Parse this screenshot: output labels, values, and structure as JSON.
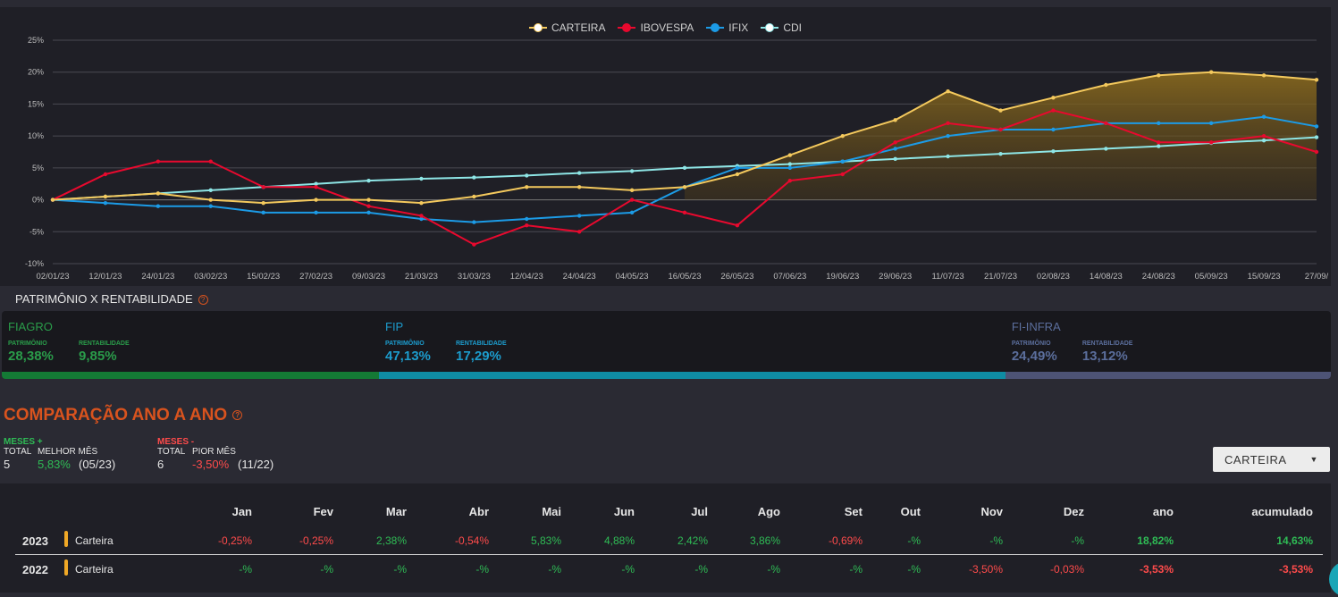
{
  "chart": {
    "legend": [
      {
        "name": "CARTEIRA",
        "color": "#f4c95d",
        "fill": "#ffffff"
      },
      {
        "name": "IBOVESPA",
        "color": "#e8092e",
        "fill": "#e8092e"
      },
      {
        "name": "IFIX",
        "color": "#1c9be6",
        "fill": "#1c9be6"
      },
      {
        "name": "CDI",
        "color": "#8ee6e6",
        "fill": "#ffffff"
      }
    ]
  },
  "chart_data": {
    "type": "line",
    "y_ticks": [
      "25%",
      "20%",
      "15%",
      "10%",
      "5%",
      "0%",
      "-5%",
      "-10%"
    ],
    "ylim": [
      -10,
      25
    ],
    "x_ticks": [
      "02/01/23",
      "12/01/23",
      "24/01/23",
      "03/02/23",
      "15/02/23",
      "27/02/23",
      "09/03/23",
      "21/03/23",
      "31/03/23",
      "12/04/23",
      "24/04/23",
      "04/05/23",
      "16/05/23",
      "26/05/23",
      "07/06/23",
      "19/06/23",
      "29/06/23",
      "11/07/23",
      "21/07/23",
      "02/08/23",
      "14/08/23",
      "24/08/23",
      "05/09/23",
      "15/09/23",
      "27/09/"
    ],
    "series": [
      {
        "name": "CARTEIRA",
        "color": "#f4c95d",
        "values": [
          0,
          0.5,
          1,
          0,
          -0.5,
          0,
          0,
          -0.5,
          0.5,
          2,
          2,
          1.5,
          2,
          4,
          7,
          10,
          12.5,
          17,
          14,
          16,
          18,
          19.5,
          20,
          19.5,
          18.8
        ]
      },
      {
        "name": "IBOVESPA",
        "color": "#e8092e",
        "values": [
          0,
          4,
          6,
          6,
          2,
          2,
          -1,
          -2.5,
          -7,
          -4,
          -5,
          0,
          -2,
          -4,
          3,
          4,
          9,
          12,
          11,
          14,
          12,
          9,
          9,
          10,
          7.5
        ]
      },
      {
        "name": "IFIX",
        "color": "#1c9be6",
        "values": [
          0,
          -0.5,
          -1,
          -1,
          -2,
          -2,
          -2,
          -3,
          -3.5,
          -3,
          -2.5,
          -2,
          2,
          5,
          5,
          6,
          8,
          10,
          11,
          11,
          12,
          12,
          12,
          13,
          11.5
        ]
      },
      {
        "name": "CDI",
        "color": "#8ee6e6",
        "values": [
          0,
          0.5,
          1,
          1.5,
          2,
          2.5,
          3,
          3.3,
          3.5,
          3.8,
          4.2,
          4.5,
          5,
          5.3,
          5.6,
          6,
          6.4,
          6.8,
          7.2,
          7.6,
          8,
          8.4,
          8.9,
          9.3,
          9.8
        ]
      }
    ]
  },
  "patrimonio": {
    "title": "PATRIMÔNIO X RENTABILIDADE",
    "help": "?",
    "label_patrimonio": "PATRIMÔNIO",
    "label_rentabilidade": "RENTABILIDADE",
    "segments": [
      {
        "name": "FIAGRO",
        "patrimonio": "28,38%",
        "rentabilidade": "9,85%",
        "share": 28.38,
        "color": "#2a9c4a",
        "bar": "#147a35"
      },
      {
        "name": "FIP",
        "patrimonio": "47,13%",
        "rentabilidade": "17,29%",
        "share": 47.13,
        "color": "#1c9ccd",
        "bar": "#0f8ca3"
      },
      {
        "name": "FI-INFRA",
        "patrimonio": "24,49%",
        "rentabilidade": "13,12%",
        "share": 24.49,
        "color": "#5b6e9c",
        "bar": "#4d5375"
      }
    ]
  },
  "comparison": {
    "title": "COMPARAÇÃO ANO A ANO",
    "help": "?",
    "pos": {
      "head": "MESES +",
      "total_label": "TOTAL",
      "total": "5",
      "best_label": "MELHOR MÊS",
      "best_value": "5,83%",
      "best_month": "(05/23)"
    },
    "neg": {
      "head": "MESES -",
      "total_label": "TOTAL",
      "total": "6",
      "worst_label": "PIOR MÊS",
      "worst_value": "-3,50%",
      "worst_month": "(11/22)"
    },
    "dropdown": "CARTEIRA",
    "headers": [
      "Jan",
      "Fev",
      "Mar",
      "Abr",
      "Mai",
      "Jun",
      "Jul",
      "Ago",
      "Set",
      "Out",
      "Nov",
      "Dez",
      "ano",
      "acumulado"
    ],
    "rows": [
      {
        "year": "2023",
        "name": "Carteira",
        "cells": [
          "-0,25%",
          "-0,25%",
          "2,38%",
          "-0,54%",
          "5,83%",
          "4,88%",
          "2,42%",
          "3,86%",
          "-0,69%",
          "-%",
          "-%",
          "-%",
          "18,82%",
          "14,63%"
        ]
      },
      {
        "year": "2022",
        "name": "Carteira",
        "cells": [
          "-%",
          "-%",
          "-%",
          "-%",
          "-%",
          "-%",
          "-%",
          "-%",
          "-%",
          "-%",
          "-3,50%",
          "-0,03%",
          "-3,53%",
          "-3,53%"
        ]
      }
    ]
  }
}
